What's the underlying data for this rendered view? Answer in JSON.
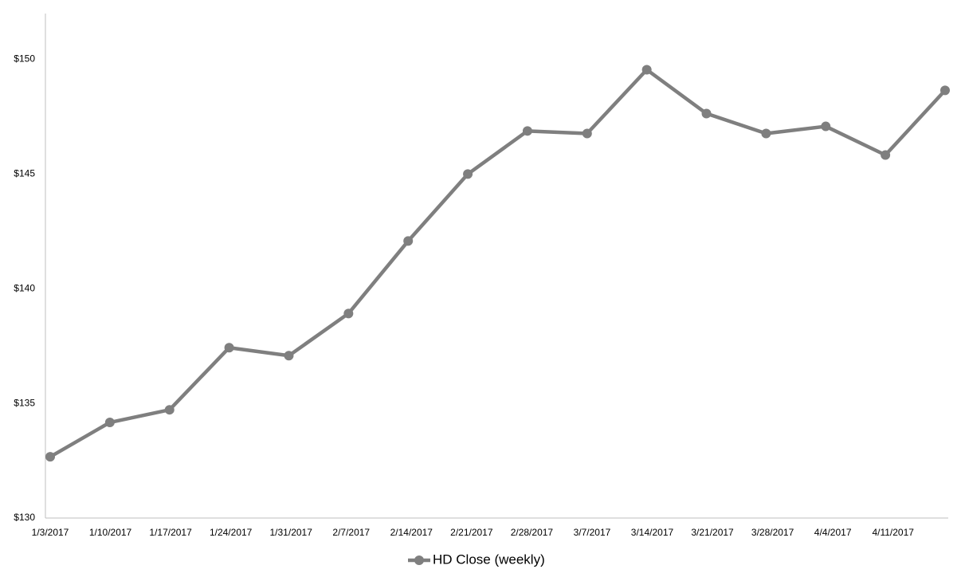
{
  "chart_data": {
    "type": "line",
    "categories": [
      "1/3/2017",
      "1/10/2017",
      "1/17/2017",
      "1/24/2017",
      "1/31/2017",
      "2/7/2017",
      "2/14/2017",
      "2/21/2017",
      "2/28/2017",
      "3/7/2017",
      "3/14/2017",
      "3/21/2017",
      "3/28/2017",
      "4/4/2017",
      "4/11/2017",
      null
    ],
    "series": [
      {
        "name": "HD Close (weekly)",
        "color": "#7f7f7f",
        "values": [
          132.67,
          134.17,
          134.72,
          137.43,
          137.08,
          138.92,
          142.08,
          145.0,
          146.88,
          146.77,
          149.55,
          147.64,
          146.77,
          147.08,
          145.83,
          148.65
        ]
      }
    ],
    "ylim": [
      130,
      152
    ],
    "yticks": [
      {
        "value": 130,
        "label": "$130"
      },
      {
        "value": 135,
        "label": "$135"
      },
      {
        "value": 140,
        "label": "$140"
      },
      {
        "value": 145,
        "label": "$145"
      },
      {
        "value": 150,
        "label": "$150"
      }
    ],
    "grid": false,
    "legend": "bottom"
  }
}
